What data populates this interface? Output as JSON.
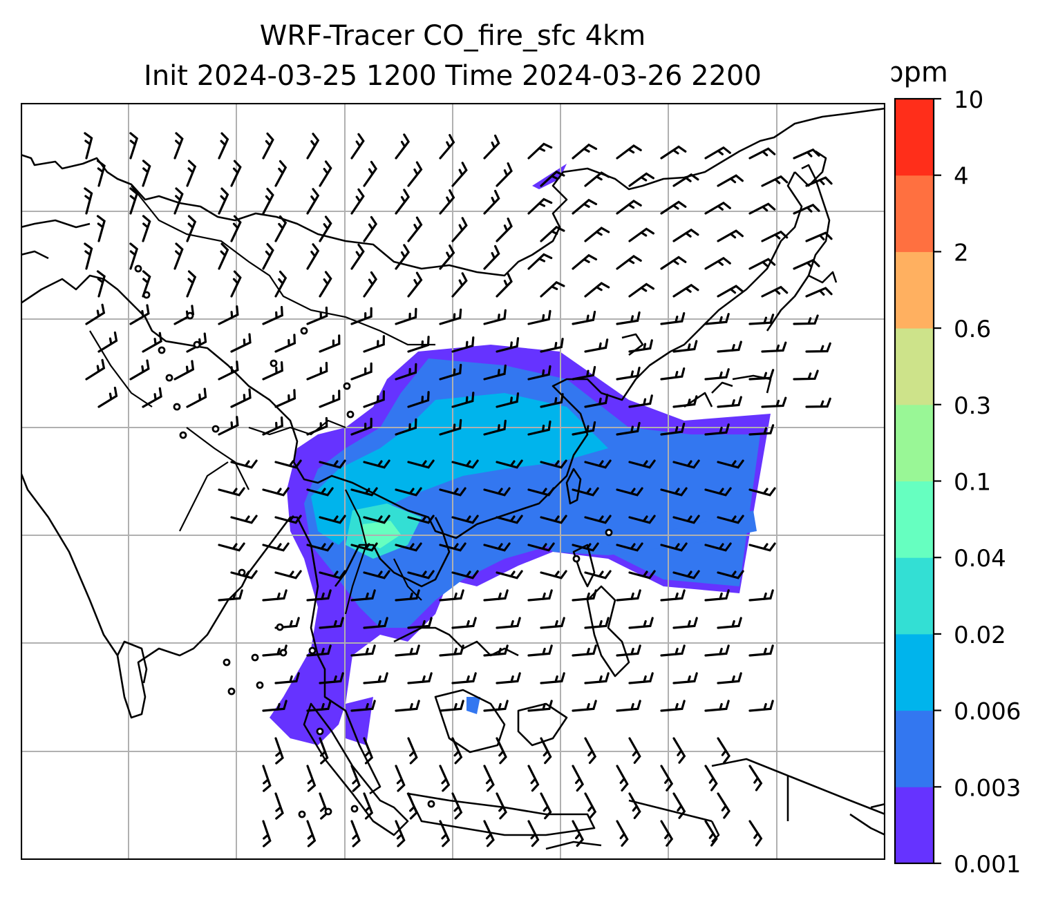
{
  "title": {
    "line1": "WRF-Tracer CO_fire_sfc 4km",
    "line2": "Init 2024-03-25 1200 Time 2024-03-26 2200"
  },
  "colorbar": {
    "unit_label": "ppm",
    "ticks": [
      "10",
      "4",
      "2",
      "0.6",
      "0.3",
      "0.1",
      "0.04",
      "0.02",
      "0.006",
      "0.003",
      "0.001"
    ],
    "colors_bottom_to_top": [
      "#6633ff",
      "#3377f0",
      "#00b4ec",
      "#33dfd4",
      "#66ffc0",
      "#99f796",
      "#cde38a",
      "#ffb060",
      "#ff7040",
      "#ff2e1a"
    ]
  },
  "map": {
    "grid": true,
    "plume_colors": {
      "level1": "#6633ff",
      "level2": "#3377f0",
      "level3": "#00b4ec",
      "level4": "#33dfd4",
      "level5": "#66ffc0"
    },
    "features": [
      "coastlines",
      "country-borders",
      "wind-barbs",
      "calm-wind-circles"
    ]
  }
}
